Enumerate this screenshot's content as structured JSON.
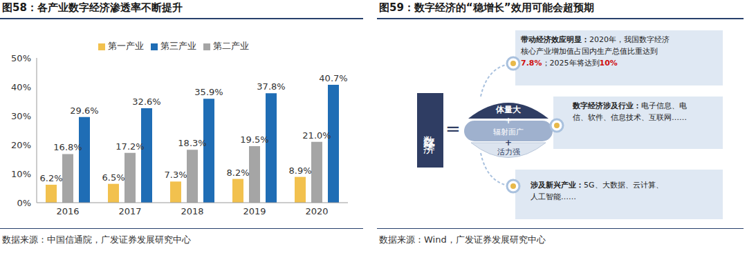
{
  "chart_data": {
    "type": "bar",
    "title": "图58：各产业数字经济渗透率不断提升",
    "source": "数据来源：中国信通院，广发证券发展研究中心",
    "categories": [
      "2016",
      "2017",
      "2018",
      "2019",
      "2020"
    ],
    "series": [
      {
        "name": "第一产业",
        "color": "#F2C14E",
        "values": [
          6.2,
          6.5,
          7.3,
          8.2,
          8.9
        ],
        "value_labels": [
          "6.2%",
          "6.5%",
          "7.3%",
          "8.2%",
          "8.9%"
        ]
      },
      {
        "name": "第二产业",
        "color": "#A5A5A5",
        "values": [
          16.8,
          17.2,
          18.3,
          19.5,
          21.0
        ],
        "value_labels": [
          "16.8%",
          "17.2%",
          "18.3%",
          "19.5%",
          "21.0%"
        ]
      },
      {
        "name": "第三产业",
        "color": "#1F6DB5",
        "values": [
          29.6,
          32.6,
          35.9,
          37.8,
          40.7
        ],
        "value_labels": [
          "29.6%",
          "32.6%",
          "35.9%",
          "37.8%",
          "40.7%"
        ]
      }
    ],
    "ylim": [
      0,
      50
    ],
    "yticks": [
      {
        "value": 0,
        "label": "0%"
      },
      {
        "value": 10,
        "label": "10%"
      },
      {
        "value": 20,
        "label": "20%"
      },
      {
        "value": 30,
        "label": "30%"
      },
      {
        "value": 40,
        "label": "40%"
      },
      {
        "value": 50,
        "label": "50%"
      }
    ],
    "grid": false,
    "legend": "top",
    "data_labels": true
  },
  "diagram": {
    "title": "图59：数字经济的“稳增长”效用可能会超预期",
    "source": "数据来源：Wind，广发证券发展研究中心",
    "subject": "数字经济",
    "equals": "=",
    "joiner": "+",
    "traits": [
      "体量大",
      "辐射面广",
      "活力强"
    ],
    "boxes": [
      {
        "heading": "带动经济效应明显：",
        "segments": [
          {
            "text": "2020年，我国数字经济核心产业增加值占国内生产总值比重达到",
            "highlight": false
          },
          {
            "text": "7.8%",
            "highlight": true
          },
          {
            "text": "；2025年将达到",
            "highlight": false
          },
          {
            "text": "10%",
            "highlight": true
          }
        ]
      },
      {
        "heading": "数字经济涉及行业：",
        "segments": [
          {
            "text": "电子信息、电信、软件、信息技术、互联网……",
            "highlight": false
          }
        ]
      },
      {
        "heading": "涉及新兴产业：",
        "segments": [
          {
            "text": "5G、大数据、云计算、人工智能……",
            "highlight": false
          }
        ]
      }
    ]
  }
}
